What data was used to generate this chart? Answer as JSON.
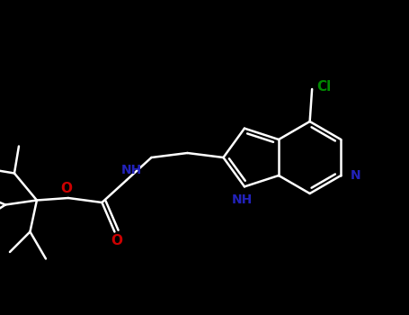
{
  "background_color": "#000000",
  "bond_color": "#ffffff",
  "nitrogen_color": "#2222bb",
  "oxygen_color": "#cc0000",
  "chlorine_color": "#008800",
  "line_width": 1.8,
  "fig_width": 4.55,
  "fig_height": 3.5,
  "dpi": 100,
  "xlim": [
    0,
    9.1
  ],
  "ylim": [
    0,
    7.0
  ]
}
